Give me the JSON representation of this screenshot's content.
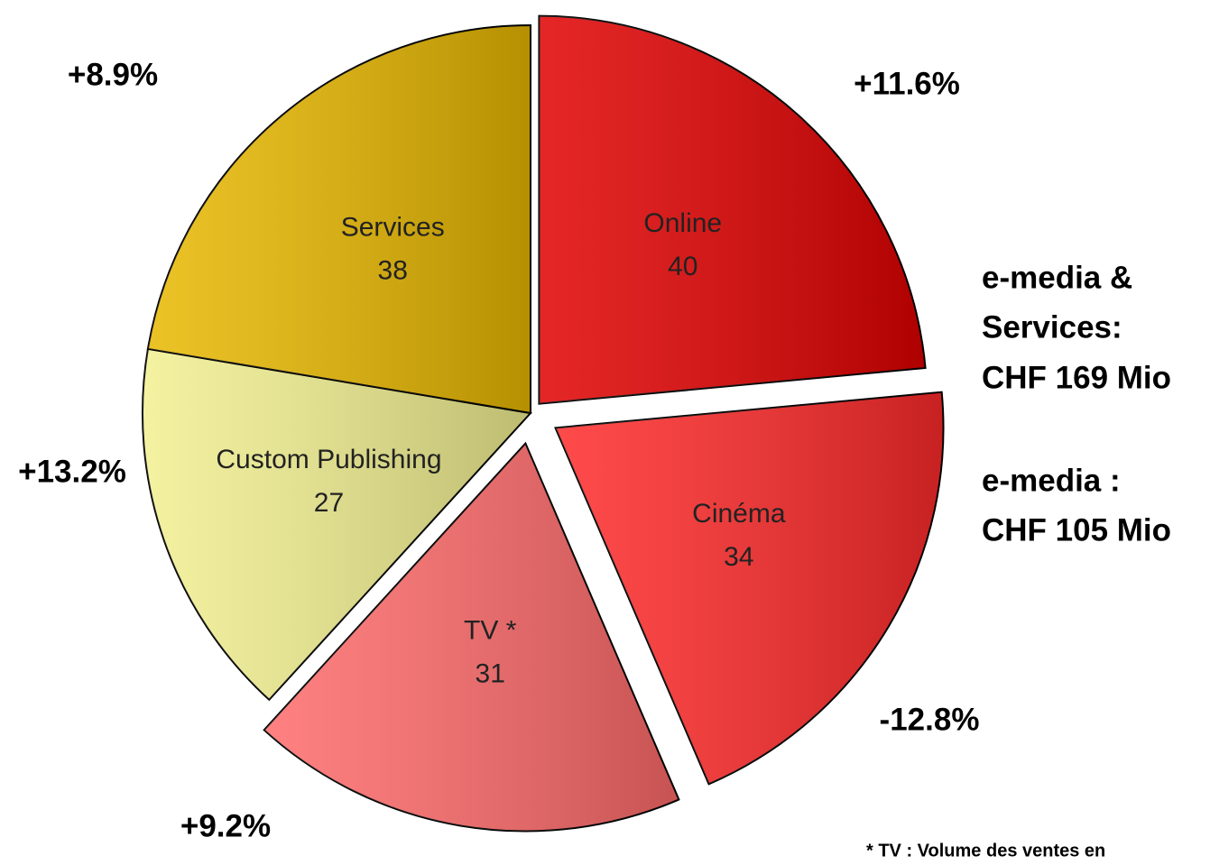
{
  "chart_data": {
    "type": "pie",
    "categories": [
      "Online",
      "Cinéma",
      "TV *",
      "Custom Publishing",
      "Services"
    ],
    "values": [
      40,
      34,
      31,
      27,
      38
    ],
    "colors": [
      "#e00000",
      "#ff2a2a",
      "#ff6a6a",
      "#f2f090",
      "#e8b800"
    ],
    "annotations": [
      "+11.6%",
      "-12.8%",
      "+9.2%",
      "+13.2%",
      "+8.9%"
    ],
    "side_text": [
      "e-media &",
      "Services:",
      "CHF 169 Mio",
      "e-media  :",
      "CHF 105 Mio"
    ],
    "footnote": "* TV : Volume des ventes en"
  }
}
